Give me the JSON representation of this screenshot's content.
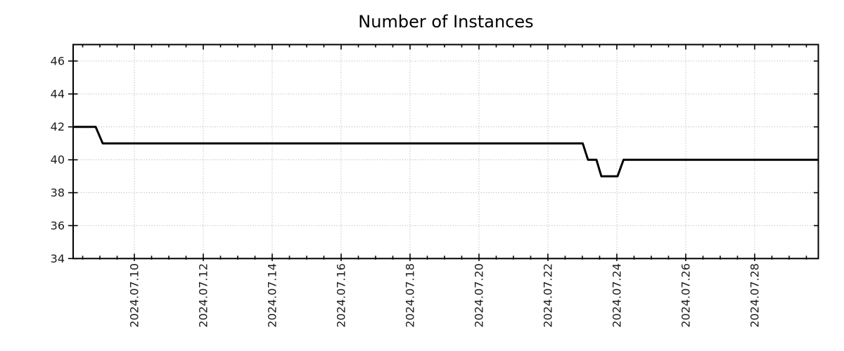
{
  "chart_data": {
    "type": "line",
    "title": "Number of Instances",
    "xlabel": "",
    "ylabel": "",
    "x_tick_labels": [
      "2024.07.10",
      "2024.07.12",
      "2024.07.14",
      "2024.07.16",
      "2024.07.18",
      "2024.07.20",
      "2024.07.22",
      "2024.07.24",
      "2024.07.26",
      "2024.07.28"
    ],
    "x_ticks_days": [
      0,
      2,
      4,
      6,
      8,
      10,
      12,
      14,
      16,
      18
    ],
    "x_day_zero_label": "2024.07.10",
    "x_minor_tick_interval_days": 0.5,
    "xlim_days": [
      -1.776,
      19.847
    ],
    "y_ticks": [
      34,
      36,
      38,
      40,
      42,
      44,
      46
    ],
    "ylim": [
      34,
      47
    ],
    "grid": "dotted",
    "legend": "none",
    "series": [
      {
        "name": "Number of Instances",
        "color": "#000000",
        "points_day_value": [
          [
            -1.776,
            42
          ],
          [
            -1.122,
            42
          ],
          [
            -0.918,
            41
          ],
          [
            13.01,
            41
          ],
          [
            13.163,
            40
          ],
          [
            13.408,
            40
          ],
          [
            13.551,
            39
          ],
          [
            14.02,
            39
          ],
          [
            14.194,
            40
          ],
          [
            19.847,
            40
          ]
        ]
      }
    ],
    "segments_readout": [
      {
        "value": 42,
        "from": "2024-07-08 ~05:00 (left edge)",
        "to": "2024-07-08 ~21:00"
      },
      {
        "value": 41,
        "from": "2024-07-09 ~02:00",
        "to": "2024-07-23 ~00:15"
      },
      {
        "value": 40,
        "from": "2024-07-23 ~04:00",
        "to": "2024-07-23 ~09:50"
      },
      {
        "value": 39,
        "from": "2024-07-23 ~13:15",
        "to": "2024-07-24 ~00:30"
      },
      {
        "value": 40,
        "from": "2024-07-24 ~04:40",
        "to": "2024-07-29 ~20:20 (right edge)"
      }
    ],
    "colors": {
      "line": "#000000",
      "grid": "#a9a9a9",
      "axis": "#000000",
      "text": "#1c1c1c",
      "background": "#ffffff"
    }
  }
}
